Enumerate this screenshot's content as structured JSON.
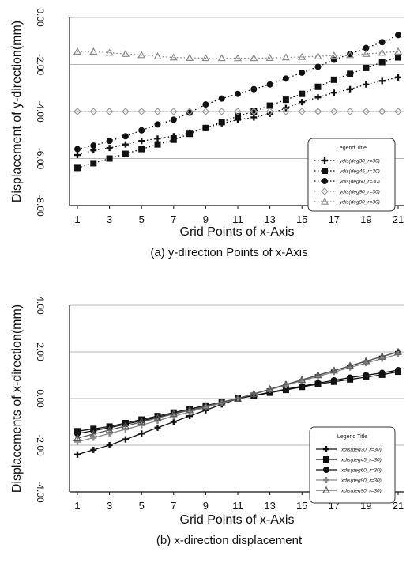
{
  "chart_data": [
    {
      "type": "line",
      "caption": "(a) y-direction Points of x-Axis",
      "xlabel": "Grid Points of x-Axis",
      "ylabel": "Displacement of y-direction(mm)",
      "ylim": [
        -8,
        0
      ],
      "yticks": [
        "0.00",
        "-2.00",
        "-4.00",
        "-6.00",
        "-8.00"
      ],
      "xticks": [
        "1",
        "3",
        "5",
        "7",
        "9",
        "11",
        "13",
        "15",
        "17",
        "19",
        "21"
      ],
      "grid": "horizontal",
      "legend": {
        "title": "Legend Title",
        "placement": "lower-right",
        "entries": [
          "ydis(deg30_r=30)",
          "ydis(deg45_r=30)",
          "ydis(deg60_r=30)",
          "ydis(deg90_r=30)",
          "ydis(deg90_r=30)"
        ]
      },
      "x": [
        1,
        2,
        3,
        4,
        5,
        6,
        7,
        8,
        9,
        10,
        11,
        12,
        13,
        14,
        15,
        16,
        17,
        18,
        19,
        20,
        21
      ],
      "series": [
        {
          "name": "ydis(deg30_r=30)",
          "marker": "plus",
          "color": "#111111",
          "values": [
            -5.85,
            -5.65,
            -5.55,
            -5.4,
            -5.25,
            -5.15,
            -5.05,
            -4.9,
            -4.7,
            -4.5,
            -4.35,
            -4.25,
            -4.1,
            -3.85,
            -3.6,
            -3.4,
            -3.2,
            -3.05,
            -2.85,
            -2.7,
            -2.55
          ]
        },
        {
          "name": "ydis(deg45_r=30)",
          "marker": "square",
          "color": "#111111",
          "values": [
            -6.4,
            -6.2,
            -6.0,
            -5.8,
            -5.6,
            -5.4,
            -5.2,
            -4.95,
            -4.7,
            -4.45,
            -4.2,
            -4.0,
            -3.75,
            -3.5,
            -3.25,
            -2.95,
            -2.65,
            -2.4,
            -2.15,
            -1.9,
            -1.7
          ]
        },
        {
          "name": "ydis(deg60_r=30)",
          "marker": "circle",
          "color": "#111111",
          "values": [
            -5.6,
            -5.45,
            -5.25,
            -5.05,
            -4.8,
            -4.55,
            -4.35,
            -4.05,
            -3.7,
            -3.45,
            -3.25,
            -3.05,
            -2.85,
            -2.6,
            -2.35,
            -2.1,
            -1.8,
            -1.55,
            -1.3,
            -1.05,
            -0.75
          ]
        },
        {
          "name": "ydis(deg90_r=30)",
          "marker": "diamond",
          "color": "#9a9a9a",
          "values": [
            -4.0,
            -4.0,
            -4.0,
            -4.0,
            -4.0,
            -4.0,
            -4.0,
            -4.0,
            -4.0,
            -4.0,
            -4.0,
            -4.0,
            -4.0,
            -4.0,
            -4.0,
            -4.0,
            -4.0,
            -4.0,
            -4.0,
            -4.0,
            -4.0
          ]
        },
        {
          "name": "ydis(deg90_r=30)",
          "marker": "triangle",
          "color": "#8a8a8a",
          "values": [
            -1.45,
            -1.45,
            -1.5,
            -1.55,
            -1.6,
            -1.65,
            -1.7,
            -1.72,
            -1.73,
            -1.73,
            -1.73,
            -1.73,
            -1.72,
            -1.7,
            -1.68,
            -1.65,
            -1.62,
            -1.6,
            -1.55,
            -1.5,
            -1.45
          ]
        }
      ]
    },
    {
      "type": "line",
      "caption": "(b) x-direction displacement",
      "xlabel": "Grid Points of x-Axis",
      "ylabel": "Displacements of x-direction(mm)",
      "ylim": [
        -4,
        4
      ],
      "yticks": [
        "4.00",
        "2.00",
        "0.00",
        "-2.00",
        "-4.00"
      ],
      "xticks": [
        "1",
        "3",
        "5",
        "7",
        "9",
        "11",
        "13",
        "15",
        "17",
        "19",
        "21"
      ],
      "grid": "horizontal",
      "legend": {
        "title": "Legend Title",
        "placement": "lower-right",
        "entries": [
          "xdis(deg30_r=30)",
          "xdis(deg45_r=30)",
          "xdis(deg60_r=30)",
          "xdis(deg90_r=30)",
          "xdis(deg90_r=30)"
        ]
      },
      "x": [
        1,
        2,
        3,
        4,
        5,
        6,
        7,
        8,
        9,
        10,
        11,
        12,
        13,
        14,
        15,
        16,
        17,
        18,
        19,
        20,
        21
      ],
      "series": [
        {
          "name": "xdis(deg30_r=30)",
          "marker": "plus",
          "color": "#111111",
          "values": [
            -2.4,
            -2.2,
            -2.0,
            -1.75,
            -1.5,
            -1.25,
            -1.0,
            -0.75,
            -0.5,
            -0.25,
            0.0,
            0.2,
            0.4,
            0.6,
            0.8,
            1.0,
            1.2,
            1.4,
            1.6,
            1.8,
            2.0
          ]
        },
        {
          "name": "xdis(deg45_r=30)",
          "marker": "square",
          "color": "#111111",
          "values": [
            -1.4,
            -1.3,
            -1.2,
            -1.05,
            -0.9,
            -0.75,
            -0.6,
            -0.45,
            -0.3,
            -0.15,
            0.0,
            0.12,
            0.25,
            0.37,
            0.5,
            0.62,
            0.72,
            0.82,
            0.92,
            1.02,
            1.15
          ]
        },
        {
          "name": "xdis(deg60_r=30)",
          "marker": "circle",
          "color": "#111111",
          "values": [
            -1.5,
            -1.38,
            -1.25,
            -1.1,
            -0.95,
            -0.8,
            -0.65,
            -0.5,
            -0.35,
            -0.18,
            0.0,
            0.13,
            0.27,
            0.4,
            0.53,
            0.66,
            0.78,
            0.9,
            1.0,
            1.1,
            1.22
          ]
        },
        {
          "name": "xdis(deg90_r=30)",
          "marker": "plus",
          "color": "#8a8a8a",
          "values": [
            -1.85,
            -1.68,
            -1.5,
            -1.32,
            -1.14,
            -0.95,
            -0.76,
            -0.57,
            -0.38,
            -0.19,
            0.0,
            0.19,
            0.38,
            0.57,
            0.76,
            0.95,
            1.14,
            1.33,
            1.52,
            1.71,
            1.9
          ]
        },
        {
          "name": "xdis(deg90_r=30)",
          "marker": "triangle",
          "color": "#5a5a5a",
          "values": [
            -1.7,
            -1.52,
            -1.35,
            -1.18,
            -1.0,
            -0.83,
            -0.66,
            -0.5,
            -0.33,
            -0.16,
            0.0,
            0.2,
            0.4,
            0.6,
            0.8,
            1.0,
            1.2,
            1.4,
            1.6,
            1.8,
            2.0
          ]
        }
      ]
    }
  ]
}
